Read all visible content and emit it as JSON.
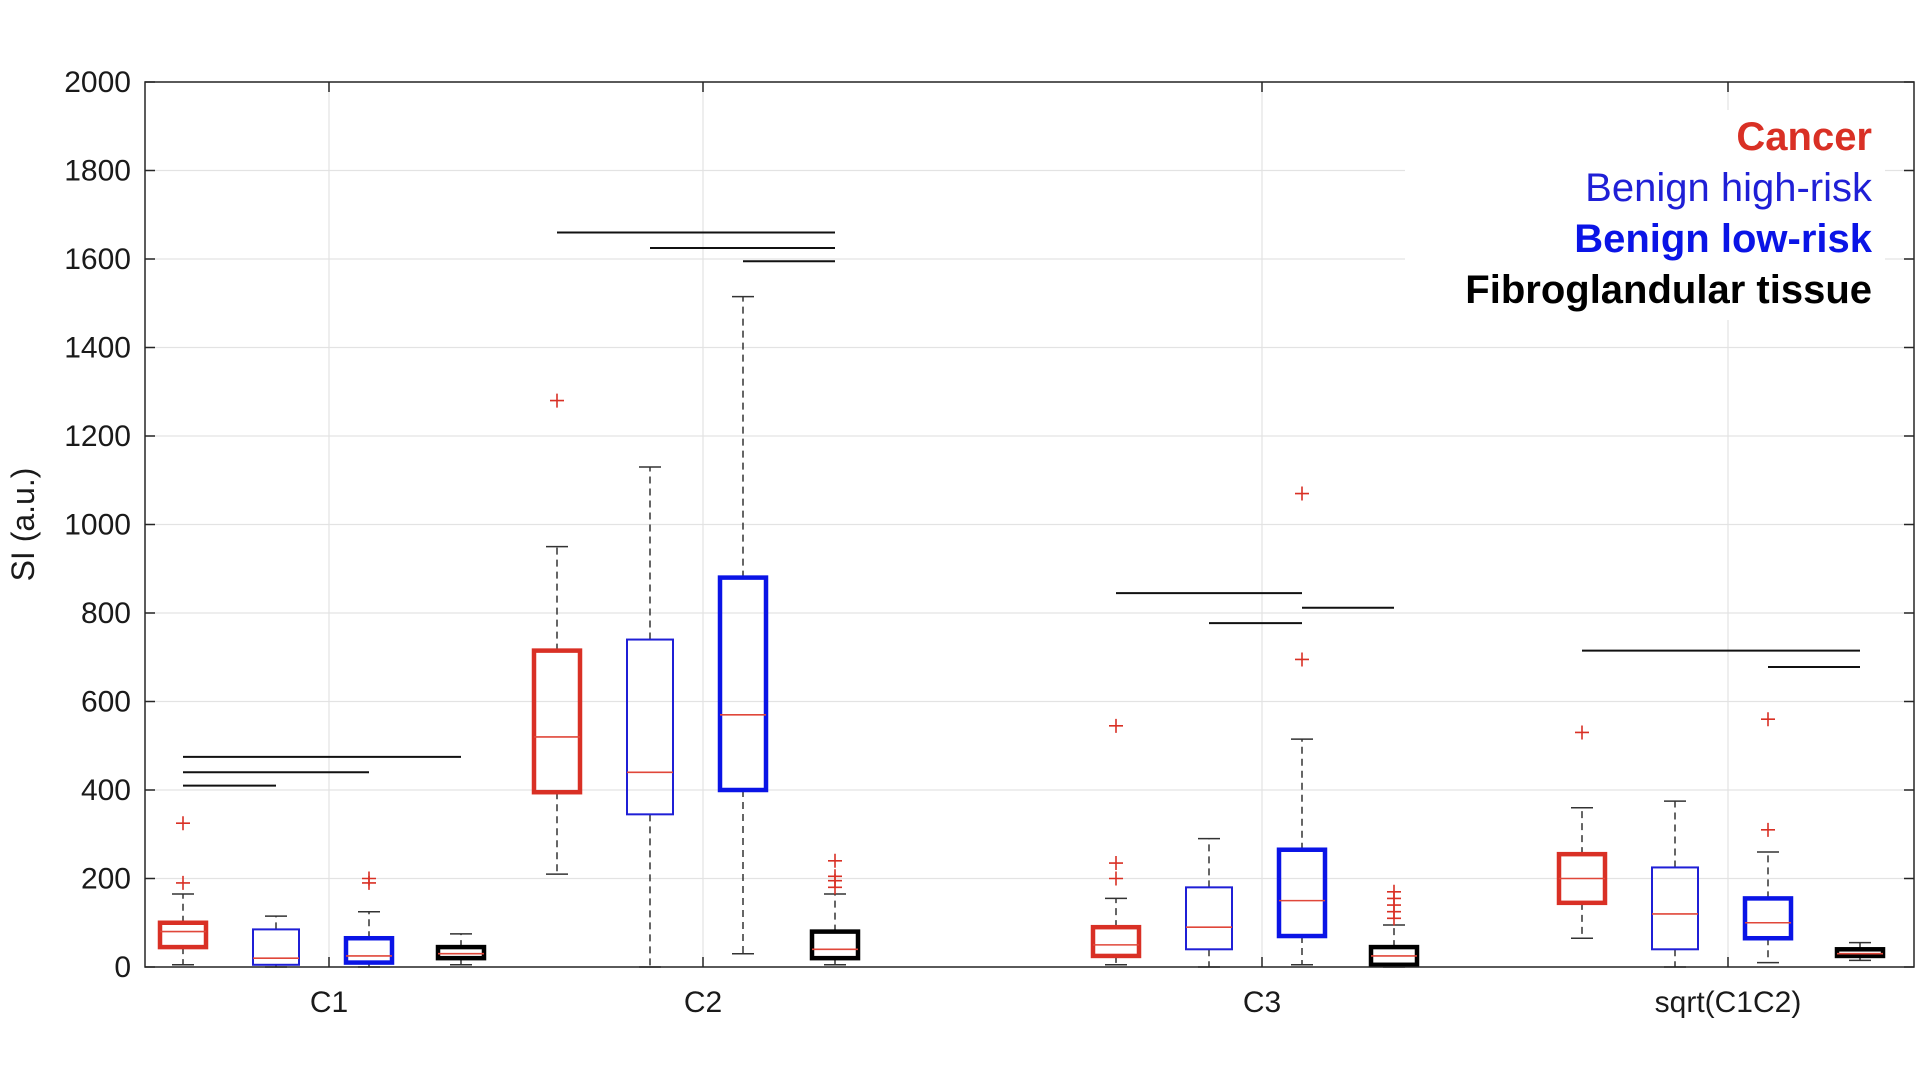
{
  "chart_data": {
    "type": "box",
    "ylabel": "SI (a.u.)",
    "ylim": [
      0,
      2000
    ],
    "yticks": [
      0,
      200,
      400,
      600,
      800,
      1000,
      1200,
      1400,
      1600,
      1800,
      2000
    ],
    "grid": true,
    "legend_position": "top-right",
    "groups": [
      "C1",
      "C2",
      "C3",
      "sqrt(C1C2)"
    ],
    "series": [
      {
        "name": "Cancer",
        "color": "#d93025",
        "bold": true,
        "boxes": [
          {
            "group": "C1",
            "min": 5,
            "q1": 45,
            "median": 80,
            "q3": 100,
            "max": 165,
            "outliers": [
              190,
              325
            ]
          },
          {
            "group": "C2",
            "min": 210,
            "q1": 395,
            "median": 520,
            "q3": 715,
            "max": 950,
            "outliers": [
              1280
            ]
          },
          {
            "group": "C3",
            "min": 5,
            "q1": 25,
            "median": 50,
            "q3": 90,
            "max": 155,
            "outliers": [
              200,
              235,
              545
            ]
          },
          {
            "group": "sqrt(C1C2)",
            "min": 65,
            "q1": 145,
            "median": 200,
            "q3": 255,
            "max": 360,
            "outliers": [
              530
            ]
          }
        ]
      },
      {
        "name": "Benign high-risk",
        "color": "#1f1fd6",
        "bold": false,
        "boxes": [
          {
            "group": "C1",
            "min": 0,
            "q1": 5,
            "median": 20,
            "q3": 85,
            "max": 115,
            "outliers": []
          },
          {
            "group": "C2",
            "min": 0,
            "q1": 345,
            "median": 440,
            "q3": 740,
            "max": 1130,
            "outliers": []
          },
          {
            "group": "C3",
            "min": 0,
            "q1": 40,
            "median": 90,
            "q3": 180,
            "max": 290,
            "outliers": []
          },
          {
            "group": "sqrt(C1C2)",
            "min": 0,
            "q1": 40,
            "median": 120,
            "q3": 225,
            "max": 375,
            "outliers": []
          }
        ]
      },
      {
        "name": "Benign low-risk",
        "color": "#0a14e6",
        "bold": true,
        "boxes": [
          {
            "group": "C1",
            "min": 0,
            "q1": 10,
            "median": 25,
            "q3": 65,
            "max": 125,
            "outliers": [
              190,
              200
            ]
          },
          {
            "group": "C2",
            "min": 30,
            "q1": 400,
            "median": 570,
            "q3": 880,
            "max": 1515,
            "outliers": []
          },
          {
            "group": "C3",
            "min": 5,
            "q1": 70,
            "median": 150,
            "q3": 265,
            "max": 515,
            "outliers": [
              695,
              1070
            ]
          },
          {
            "group": "sqrt(C1C2)",
            "min": 10,
            "q1": 65,
            "median": 100,
            "q3": 155,
            "max": 260,
            "outliers": [
              310,
              560
            ]
          }
        ]
      },
      {
        "name": "Fibroglandular tissue",
        "color": "#000000",
        "bold": true,
        "boxes": [
          {
            "group": "C1",
            "min": 5,
            "q1": 20,
            "median": 30,
            "q3": 45,
            "max": 75,
            "outliers": []
          },
          {
            "group": "C2",
            "min": 5,
            "q1": 20,
            "median": 40,
            "q3": 80,
            "max": 165,
            "outliers": [
              180,
              195,
              205,
              240
            ]
          },
          {
            "group": "C3",
            "min": 0,
            "q1": 5,
            "median": 25,
            "q3": 45,
            "max": 95,
            "outliers": [
              110,
              125,
              140,
              155,
              170
            ]
          },
          {
            "group": "sqrt(C1C2)",
            "min": 15,
            "q1": 25,
            "median": 30,
            "q3": 40,
            "max": 55,
            "outliers": []
          }
        ]
      }
    ],
    "significance_bars": [
      {
        "group": "C1",
        "from": "Cancer",
        "to": "Fibroglandular tissue",
        "y": 475
      },
      {
        "group": "C1",
        "from": "Cancer",
        "to": "Benign low-risk",
        "y": 440
      },
      {
        "group": "C1",
        "from": "Cancer",
        "to": "Benign high-risk",
        "y": 410
      },
      {
        "group": "C2",
        "from": "Cancer",
        "to": "Fibroglandular tissue",
        "y": 1660
      },
      {
        "group": "C2",
        "from": "Benign high-risk",
        "to": "Fibroglandular tissue",
        "y": 1625
      },
      {
        "group": "C2",
        "from": "Benign low-risk",
        "to": "Fibroglandular tissue",
        "y": 1595
      },
      {
        "group": "C3",
        "from": "Cancer",
        "to": "Benign low-risk",
        "y": 845
      },
      {
        "group": "C3",
        "from": "Benign low-risk",
        "to": "Fibroglandular tissue",
        "y": 812
      },
      {
        "group": "C3",
        "from": "Benign high-risk",
        "to": "Benign low-risk",
        "y": 777
      },
      {
        "group": "sqrt(C1C2)",
        "from": "Cancer",
        "to": "Fibroglandular tissue",
        "y": 715
      },
      {
        "group": "sqrt(C1C2)",
        "from": "Benign low-risk",
        "to": "Fibroglandular tissue",
        "y": 678
      }
    ]
  }
}
